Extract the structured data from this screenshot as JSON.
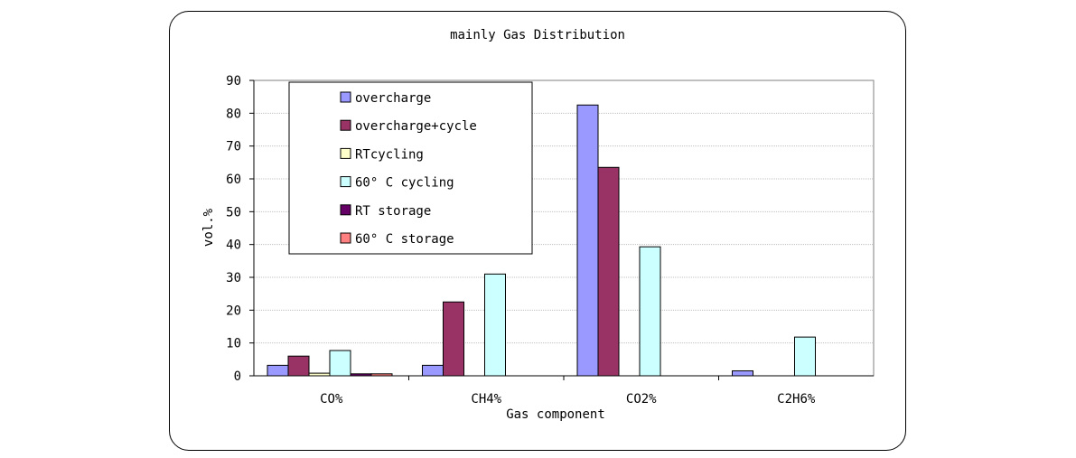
{
  "chart_data": {
    "type": "bar",
    "title": "mainly Gas Distribution",
    "xlabel": "Gas component",
    "ylabel": "vol.%",
    "ylim": [
      0,
      90
    ],
    "yticks": [
      0,
      10,
      20,
      30,
      40,
      50,
      60,
      70,
      80,
      90
    ],
    "grid": true,
    "legend_position": "top-left inside",
    "categories": [
      "CO%",
      "CH4%",
      "CO2%",
      "C2H6%"
    ],
    "series": [
      {
        "name": "overcharge",
        "color": "#9999ff",
        "values": [
          3.2,
          3.2,
          82.5,
          1.5
        ]
      },
      {
        "name": "overcharge+cycle",
        "color": "#993366",
        "values": [
          6.0,
          22.5,
          63.5,
          0
        ]
      },
      {
        "name": "RTcycling",
        "color": "#ffffcc",
        "values": [
          0.8,
          0,
          0,
          0
        ]
      },
      {
        "name": "60° C cycling",
        "color": "#ccffff",
        "values": [
          7.7,
          31.0,
          39.3,
          11.8
        ]
      },
      {
        "name": "RT storage",
        "color": "#660066",
        "values": [
          0.6,
          0,
          0,
          0
        ]
      },
      {
        "name": "60° C storage",
        "color": "#ff8080",
        "values": [
          0.6,
          0,
          0,
          0
        ]
      }
    ]
  }
}
